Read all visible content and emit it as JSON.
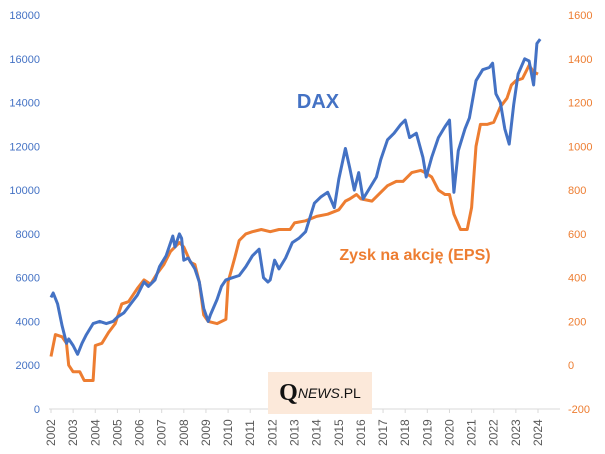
{
  "chart_data": {
    "type": "line",
    "title": "",
    "logo": "QNEWS.PL",
    "x_ticks": [
      "2002",
      "2003",
      "2004",
      "2005",
      "2006",
      "2007",
      "2008",
      "2009",
      "2010",
      "2011",
      "2012",
      "2013",
      "2014",
      "2015",
      "2016",
      "2017",
      "2018",
      "2019",
      "2020",
      "2021",
      "2022",
      "2023",
      "2024"
    ],
    "y_left": {
      "min": 0,
      "max": 18000,
      "ticks": [
        "0",
        "2000",
        "4000",
        "6000",
        "8000",
        "10000",
        "12000",
        "14000",
        "16000",
        "18000"
      ],
      "color": "#4472C4"
    },
    "y_right": {
      "min": -200,
      "max": 1600,
      "ticks": [
        "-200",
        "0",
        "200",
        "400",
        "600",
        "800",
        "1000",
        "1200",
        "1400",
        "1600"
      ],
      "color": "#ED7D31"
    },
    "grid": false,
    "series": [
      {
        "name": "DAX",
        "axis": "left",
        "color": "#4472C4",
        "x": [
          2002.0,
          2002.1,
          2002.3,
          2002.5,
          2002.7,
          2002.8,
          2003.0,
          2003.2,
          2003.4,
          2003.6,
          2003.9,
          2004.2,
          2004.5,
          2004.8,
          2005.0,
          2005.3,
          2005.6,
          2005.9,
          2006.2,
          2006.4,
          2006.7,
          2006.9,
          2007.2,
          2007.5,
          2007.6,
          2007.8,
          2007.9,
          2008.0,
          2008.2,
          2008.5,
          2008.7,
          2008.9,
          2009.1,
          2009.2,
          2009.5,
          2009.7,
          2009.9,
          2010.2,
          2010.5,
          2010.8,
          2011.1,
          2011.4,
          2011.6,
          2011.8,
          2011.9,
          2012.1,
          2012.3,
          2012.6,
          2012.9,
          2013.2,
          2013.5,
          2013.9,
          2014.2,
          2014.5,
          2014.8,
          2015.0,
          2015.3,
          2015.5,
          2015.7,
          2015.9,
          2016.1,
          2016.4,
          2016.7,
          2016.9,
          2017.2,
          2017.5,
          2017.8,
          2018.0,
          2018.2,
          2018.5,
          2018.8,
          2018.95,
          2019.2,
          2019.5,
          2019.8,
          2020.0,
          2020.2,
          2020.4,
          2020.7,
          2020.9,
          2021.2,
          2021.5,
          2021.8,
          2021.95,
          2022.1,
          2022.3,
          2022.5,
          2022.7,
          2022.9,
          2023.1,
          2023.4,
          2023.6,
          2023.8,
          2023.95,
          2024.1
        ],
        "y": [
          5100,
          5300,
          4800,
          3800,
          3000,
          3200,
          2900,
          2500,
          3000,
          3400,
          3900,
          4000,
          3900,
          4000,
          4200,
          4400,
          4800,
          5200,
          5800,
          5600,
          5900,
          6500,
          7000,
          7900,
          7400,
          8000,
          7800,
          6800,
          6900,
          6400,
          5800,
          4600,
          4000,
          4300,
          5000,
          5600,
          5900,
          6000,
          6100,
          6500,
          7000,
          7300,
          6000,
          5800,
          5900,
          6800,
          6400,
          6900,
          7600,
          7800,
          8100,
          9400,
          9700,
          9900,
          9200,
          10500,
          11900,
          11000,
          10000,
          10800,
          9600,
          10100,
          10600,
          11400,
          12300,
          12600,
          13000,
          13200,
          12400,
          12600,
          11500,
          10600,
          11500,
          12400,
          12900,
          13200,
          9900,
          11800,
          12800,
          13300,
          15000,
          15500,
          15600,
          15800,
          14400,
          14000,
          12800,
          12100,
          13900,
          15300,
          16000,
          15900,
          14800,
          16700,
          16900
        ],
        "label": "DAX"
      },
      {
        "name": "Zysk na akcję (EPS)",
        "axis": "right",
        "color": "#ED7D31",
        "x": [
          2002.0,
          2002.2,
          2002.5,
          2002.7,
          2002.8,
          2003.0,
          2003.3,
          2003.5,
          2003.9,
          2004.0,
          2004.3,
          2004.6,
          2004.9,
          2005.2,
          2005.5,
          2005.9,
          2006.2,
          2006.5,
          2006.8,
          2007.1,
          2007.4,
          2007.8,
          2008.0,
          2008.3,
          2008.5,
          2008.7,
          2008.9,
          2009.1,
          2009.5,
          2009.9,
          2010.0,
          2010.3,
          2010.5,
          2010.8,
          2011.1,
          2011.5,
          2011.9,
          2012.3,
          2012.8,
          2013.0,
          2013.5,
          2014.0,
          2014.5,
          2015.0,
          2015.3,
          2015.5,
          2015.8,
          2016.0,
          2016.5,
          2016.9,
          2017.2,
          2017.6,
          2017.9,
          2018.3,
          2018.7,
          2018.9,
          2019.2,
          2019.5,
          2019.8,
          2020.0,
          2020.2,
          2020.5,
          2020.8,
          2021.0,
          2021.2,
          2021.4,
          2021.7,
          2022.0,
          2022.3,
          2022.6,
          2022.8,
          2023.0,
          2023.3,
          2023.6,
          2023.8,
          2024.0
        ],
        "y": [
          40,
          140,
          130,
          100,
          0,
          -30,
          -30,
          -70,
          -70,
          90,
          100,
          150,
          190,
          280,
          290,
          350,
          390,
          370,
          420,
          460,
          520,
          560,
          540,
          470,
          460,
          380,
          230,
          200,
          190,
          210,
          380,
          490,
          570,
          600,
          610,
          620,
          610,
          620,
          620,
          650,
          660,
          680,
          690,
          710,
          750,
          760,
          780,
          760,
          750,
          790,
          820,
          840,
          840,
          880,
          890,
          880,
          860,
          800,
          780,
          780,
          690,
          620,
          620,
          720,
          1000,
          1100,
          1100,
          1110,
          1180,
          1220,
          1280,
          1300,
          1310,
          1370,
          1340,
          1330
        ],
        "label": "Zysk na akcję (EPS)"
      }
    ]
  }
}
